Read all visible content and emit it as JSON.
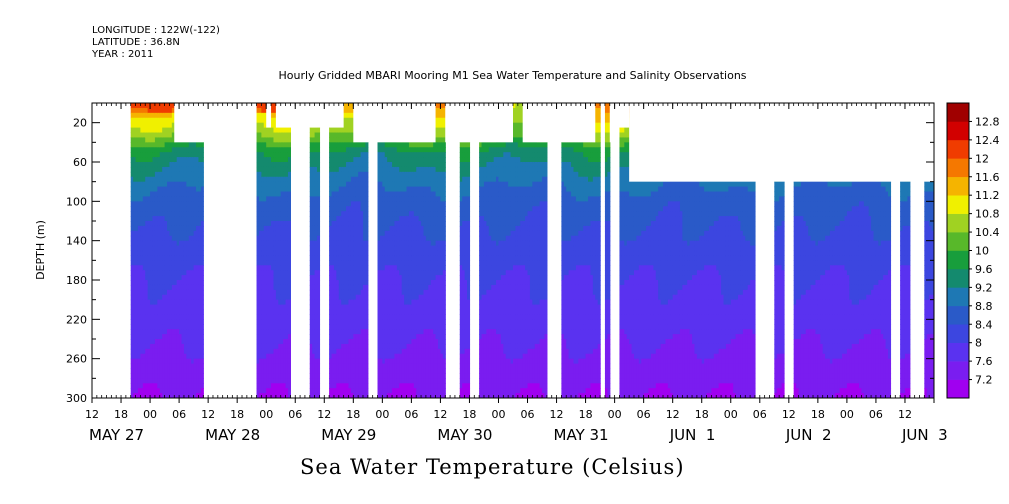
{
  "header": {
    "longitude": "LONGITUDE : 122W(-122)",
    "latitude": "LATITUDE : 36.8N",
    "year": "YEAR : 2011"
  },
  "chart_data": {
    "type": "heatmap",
    "title": "Hourly Gridded MBARI Mooring M1 Sea Water Temperature and Salinity Observations",
    "xlabel": "Sea Water Temperature (Celsius)",
    "ylabel": "DEPTH (m)",
    "x_range_hours": [
      0,
      174
    ],
    "x_start": "May 26 12:00",
    "ylim": [
      300,
      0
    ],
    "y_ticks": [
      20,
      60,
      100,
      140,
      180,
      220,
      260,
      300
    ],
    "hour_tick_labels": [
      "12",
      "18",
      "00",
      "06",
      "12",
      "18",
      "00",
      "06",
      "12",
      "18",
      "00",
      "06",
      "12",
      "18",
      "00",
      "06",
      "12",
      "18",
      "00",
      "06",
      "12",
      "18",
      "00",
      "06",
      "12",
      "18",
      "00",
      "06",
      "12"
    ],
    "date_labels": [
      {
        "label": "MAY 27",
        "hour": 12
      },
      {
        "label": "MAY 28",
        "hour": 36
      },
      {
        "label": "MAY 29",
        "hour": 60
      },
      {
        "label": "MAY 30",
        "hour": 84
      },
      {
        "label": "MAY 31",
        "hour": 108
      },
      {
        "label": "JUN  1",
        "hour": 132
      },
      {
        "label": "JUN  2",
        "hour": 156
      },
      {
        "label": "JUN  3",
        "hour": 180
      }
    ],
    "colorbar": {
      "levels": [
        7.2,
        7.6,
        8,
        8.4,
        8.8,
        9.2,
        9.6,
        10,
        10.4,
        10.8,
        11.2,
        11.6,
        12,
        12.4,
        12.8
      ],
      "labels": [
        "7.2",
        "7.6",
        "8",
        "8.4",
        "8.8",
        "9.2",
        "9.6",
        "10",
        "10.4",
        "10.8",
        "11.2",
        "11.6",
        "12",
        "12.4",
        "12.8"
      ],
      "colors": [
        "#a000f0",
        "#7a1df0",
        "#5a32f0",
        "#3c46e0",
        "#2a5ac8",
        "#1e78b4",
        "#148a6e",
        "#189e3c",
        "#58b82a",
        "#a0d222",
        "#f0f000",
        "#f5b400",
        "#f57800",
        "#f03c00",
        "#d20000",
        "#a00000"
      ]
    },
    "data_segments_hours": [
      [
        8,
        23
      ],
      [
        34,
        41
      ],
      [
        45,
        47
      ],
      [
        49,
        57
      ],
      [
        59,
        73
      ],
      [
        76,
        78
      ],
      [
        80,
        94
      ],
      [
        97,
        105
      ],
      [
        106,
        107
      ],
      [
        109,
        137
      ],
      [
        141,
        143
      ],
      [
        145,
        165
      ],
      [
        167,
        169
      ],
      [
        172,
        174
      ]
    ],
    "missing_regions": [
      {
        "hours": [
          17,
          34
        ],
        "depth": [
          0,
          40
        ]
      },
      {
        "hours": [
          36,
          37
        ],
        "depth": [
          0,
          25
        ]
      },
      {
        "hours": [
          38,
          52
        ],
        "depth": [
          0,
          25
        ]
      },
      {
        "hours": [
          54,
          71
        ],
        "depth": [
          0,
          40
        ]
      },
      {
        "hours": [
          73,
          87
        ],
        "depth": [
          0,
          40
        ]
      },
      {
        "hours": [
          89,
          104
        ],
        "depth": [
          0,
          40
        ]
      },
      {
        "hours": [
          107,
          108
        ],
        "depth": [
          0,
          40
        ]
      },
      {
        "hours": [
          108,
          111
        ],
        "depth": [
          0,
          25
        ]
      },
      {
        "hours": [
          111,
          174
        ],
        "depth": [
          0,
          80
        ]
      }
    ],
    "temperature_profile": [
      {
        "depth": 0,
        "temp": 11.6
      },
      {
        "depth": 15,
        "temp": 11.0
      },
      {
        "depth": 30,
        "temp": 10.5
      },
      {
        "depth": 50,
        "temp": 9.5
      },
      {
        "depth": 75,
        "temp": 9.0
      },
      {
        "depth": 100,
        "temp": 8.6
      },
      {
        "depth": 140,
        "temp": 8.3
      },
      {
        "depth": 180,
        "temp": 8.0
      },
      {
        "depth": 220,
        "temp": 7.8
      },
      {
        "depth": 260,
        "temp": 7.5
      },
      {
        "depth": 300,
        "temp": 7.2
      }
    ]
  }
}
